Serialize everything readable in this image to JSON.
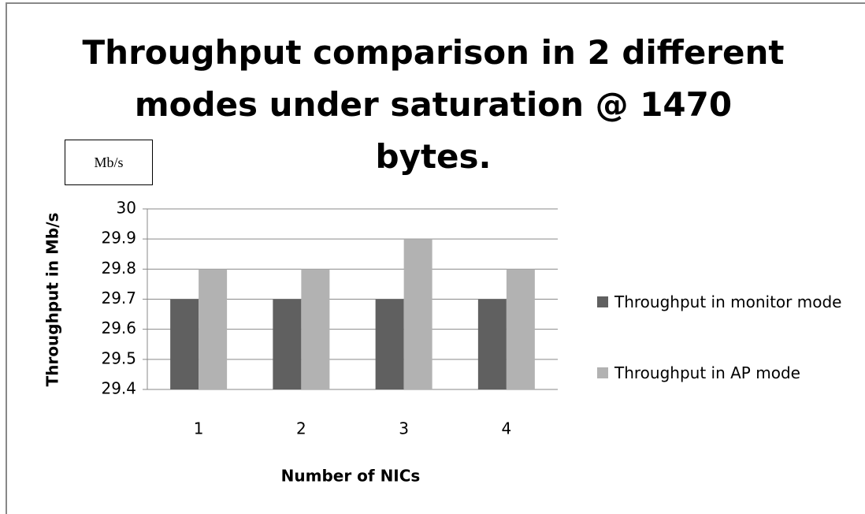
{
  "chart_data": {
    "type": "bar",
    "title": "Throughput comparison in 2 different modes under saturation @ 1470 bytes.",
    "annotation": "Mb/s",
    "x_label": "Number of NICs",
    "y_label": "Throughput in Mb/s",
    "categories": [
      "1",
      "2",
      "3",
      "4"
    ],
    "series": [
      {
        "name": "Throughput in monitor mode",
        "color": "#606060",
        "values": [
          29.7,
          29.7,
          29.7,
          29.7
        ]
      },
      {
        "name": "Throughput in AP mode",
        "color": "#b2b2b2",
        "values": [
          29.8,
          29.8,
          29.9,
          29.8
        ]
      }
    ],
    "ylim": [
      29.4,
      30
    ],
    "yticks": [
      29.4,
      29.5,
      29.6,
      29.7,
      29.8,
      29.9,
      30
    ],
    "grid": true,
    "legend": "right"
  }
}
